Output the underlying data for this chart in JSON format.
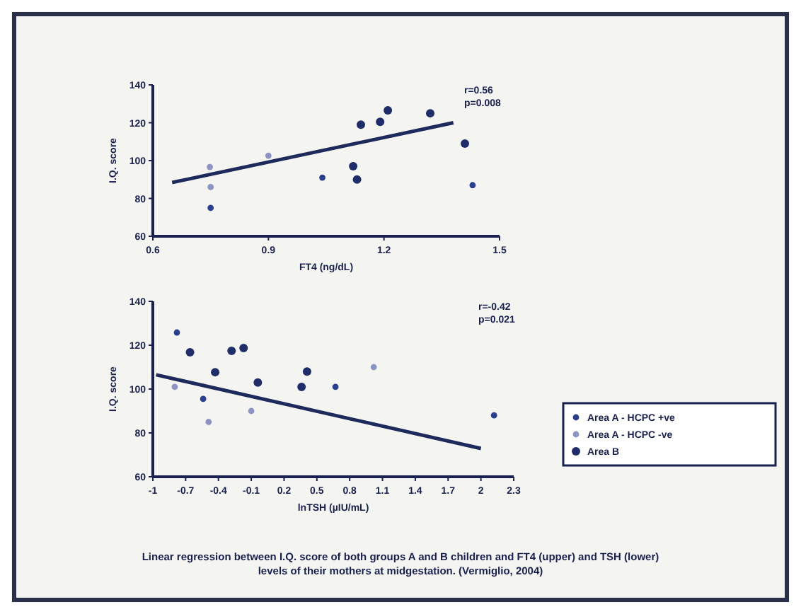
{
  "chart_data": [
    {
      "type": "scatter",
      "xlabel": "FT4 (ng/dL)",
      "ylabel": "I.Q. score",
      "xlim": [
        0.6,
        1.5
      ],
      "xticks": [
        0.6,
        0.9,
        1.2,
        1.5
      ],
      "ylim": [
        60,
        140
      ],
      "yticks": [
        60,
        80,
        100,
        120,
        140
      ],
      "grid": false,
      "marker": "circle",
      "annotations": [
        "r=0.56",
        "p=0.008"
      ],
      "series": [
        {
          "color": "#2a3f8f",
          "x": [
            0.75,
            1.04,
            1.43
          ],
          "values": [
            75,
            91,
            87
          ]
        },
        {
          "color": "#8c94c4",
          "x": [
            0.748,
            0.75,
            0.9
          ],
          "values": [
            96.6,
            86,
            102.6
          ]
        },
        {
          "color": "#1f2d6b",
          "x": [
            1.12,
            1.13,
            1.14,
            1.19,
            1.21,
            1.32,
            1.41
          ],
          "values": [
            97,
            90,
            119,
            120.5,
            126.5,
            125,
            109
          ]
        },
        {
          "type": "line",
          "marker": "none",
          "color": "#1f2a5c",
          "x": [
            0.65,
            1.38
          ],
          "values": [
            88.4,
            120
          ]
        }
      ]
    },
    {
      "type": "scatter",
      "xlabel": "lnTSH (µIU/mL)",
      "ylabel": "I.Q. score",
      "xlim": [
        -1,
        2.3
      ],
      "xticks": [
        -1,
        -0.7,
        -0.4,
        -0.1,
        0.2,
        0.5,
        0.8,
        1.1,
        1.4,
        1.7,
        2,
        2.3
      ],
      "ylim": [
        60,
        140
      ],
      "yticks": [
        60,
        80,
        100,
        120,
        140
      ],
      "grid": false,
      "marker": "circle",
      "legend": "right",
      "annotations": [
        "r=-0.42",
        "p=0.021",
        "Linear regression between I.Q. score of both groups A and B children and FT4 (upper) and TSH (lower) levels of their mothers at midgestation. (Vermiglio, 2004)"
      ],
      "series": [
        {
          "name": "Area A - HCPC +ve",
          "color": "#2a3f8f",
          "x": [
            -0.78,
            -0.54,
            0.67,
            2.12
          ],
          "values": [
            125.8,
            95.5,
            101,
            88
          ]
        },
        {
          "name": "Area A - HCPC -ve",
          "color": "#8c94c4",
          "x": [
            -0.8,
            -0.49,
            -0.1,
            1.02
          ],
          "values": [
            101,
            85,
            90,
            110
          ]
        },
        {
          "name": "Area B",
          "color": "#1f2d6b",
          "x": [
            -0.66,
            -0.43,
            -0.28,
            -0.17,
            -0.04,
            0.36,
            0.41
          ],
          "values": [
            116.8,
            107.7,
            117.4,
            118.7,
            103,
            101,
            108
          ]
        },
        {
          "type": "line",
          "marker": "none",
          "color": "#1f2a5c",
          "x": [
            -0.97,
            2.0
          ],
          "values": [
            106.5,
            72.9
          ]
        }
      ]
    }
  ]
}
